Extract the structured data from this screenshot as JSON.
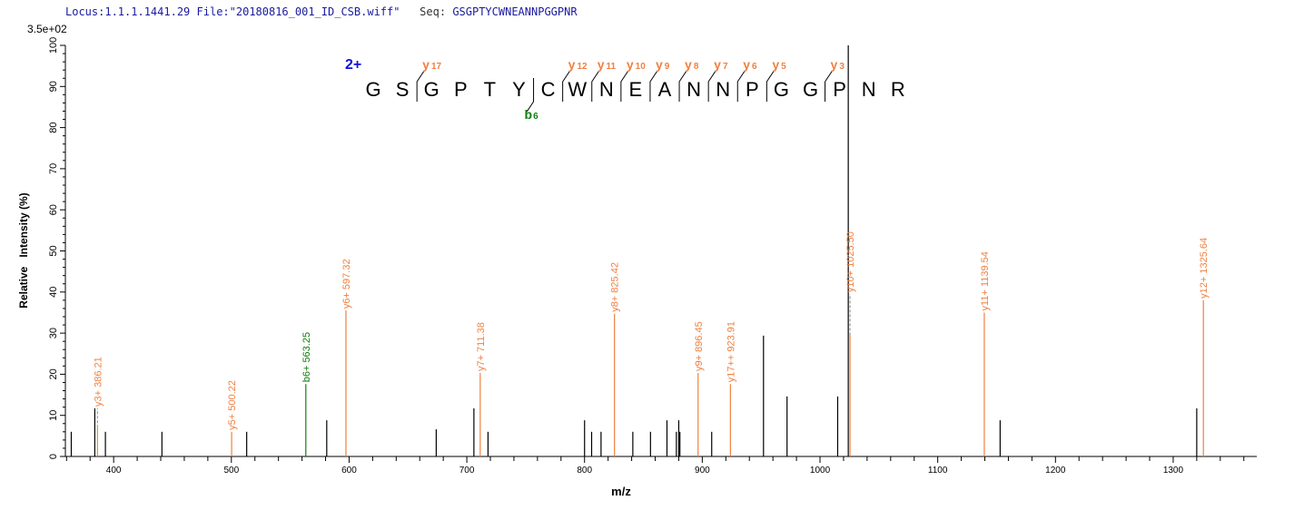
{
  "header": {
    "locus_label": "Locus:1.1.1.1441.29",
    "file_label": "File:\"20180816_001_ID_CSB.wiff\"",
    "seq_key": "Seq:",
    "seq_value": "GSGPTYCWNEANNPGGPNR"
  },
  "chart_data": {
    "type": "bar",
    "subtype": "mass-spectrum-sticks",
    "xlabel": "m/z",
    "ylabel": "Relative   Intensity (%)",
    "y_scale_max_label": "3.5e+02",
    "xlim": [
      359,
      1371
    ],
    "ylim": [
      0,
      100
    ],
    "x_ticks": [
      400,
      500,
      600,
      700,
      800,
      900,
      1000,
      1100,
      1200,
      1300
    ],
    "y_ticks": [
      0,
      10,
      20,
      30,
      40,
      50,
      60,
      70,
      80,
      90,
      100
    ],
    "grid": false,
    "colors": {
      "unmatched": "#000000",
      "y_ion": "#f08040",
      "b_ion": "#108010",
      "charge": "#1010e0"
    },
    "unmatched_peaks": [
      {
        "mz": 364,
        "intensity": 6
      },
      {
        "mz": 384,
        "intensity": 11.7
      },
      {
        "mz": 393,
        "intensity": 6
      },
      {
        "mz": 441,
        "intensity": 6
      },
      {
        "mz": 513,
        "intensity": 6
      },
      {
        "mz": 581,
        "intensity": 8.8
      },
      {
        "mz": 674,
        "intensity": 6.6
      },
      {
        "mz": 706,
        "intensity": 11.7
      },
      {
        "mz": 718,
        "intensity": 6
      },
      {
        "mz": 800,
        "intensity": 8.8
      },
      {
        "mz": 806,
        "intensity": 6
      },
      {
        "mz": 814,
        "intensity": 6
      },
      {
        "mz": 841,
        "intensity": 6
      },
      {
        "mz": 856,
        "intensity": 6
      },
      {
        "mz": 870,
        "intensity": 8.8
      },
      {
        "mz": 878,
        "intensity": 6
      },
      {
        "mz": 880,
        "intensity": 8.8
      },
      {
        "mz": 881,
        "intensity": 6
      },
      {
        "mz": 908,
        "intensity": 6
      },
      {
        "mz": 952,
        "intensity": 29.4
      },
      {
        "mz": 972,
        "intensity": 14.6
      },
      {
        "mz": 1015,
        "intensity": 14.6
      },
      {
        "mz": 1024,
        "intensity": 100
      },
      {
        "mz": 1153,
        "intensity": 8.8
      },
      {
        "mz": 1320,
        "intensity": 11.7
      }
    ],
    "annotated_peaks": [
      {
        "label": "y3+ 386.21",
        "mz": 386.21,
        "intensity": 7,
        "ion": "y"
      },
      {
        "label": "y5+ 500.22",
        "mz": 500.22,
        "intensity": 6,
        "ion": "y"
      },
      {
        "label": "b6+ 563.25",
        "mz": 563.25,
        "intensity": 17.6,
        "ion": "b"
      },
      {
        "label": "y6+ 597.32",
        "mz": 597.32,
        "intensity": 35.5,
        "ion": "y"
      },
      {
        "label": "y7+ 711.38",
        "mz": 711.38,
        "intensity": 20.3,
        "ion": "y"
      },
      {
        "label": "y8+ 825.42",
        "mz": 825.42,
        "intensity": 34.7,
        "ion": "y"
      },
      {
        "label": "y9+ 896.45",
        "mz": 896.45,
        "intensity": 20.3,
        "ion": "y"
      },
      {
        "label": "y17++ 923.91",
        "mz": 923.91,
        "intensity": 17.6,
        "ion": "y"
      },
      {
        "label": "y10+ 1025.50",
        "mz": 1025.5,
        "intensity": 29.5,
        "ion": "y"
      },
      {
        "label": "y11+ 1139.54",
        "mz": 1139.54,
        "intensity": 35,
        "ion": "y"
      },
      {
        "label": "y12+ 1325.64",
        "mz": 1325.64,
        "intensity": 38,
        "ion": "y"
      }
    ],
    "peptide": {
      "charge": "2+",
      "sequence": [
        "G",
        "S",
        "G",
        "P",
        "T",
        "Y",
        "C",
        "W",
        "N",
        "E",
        "A",
        "N",
        "N",
        "P",
        "G",
        "G",
        "P",
        "N",
        "R"
      ],
      "y_breaks": [
        {
          "after": 2,
          "ion": "y",
          "n": "17"
        },
        {
          "after": 7,
          "ion": "y",
          "n": "12"
        },
        {
          "after": 8,
          "ion": "y",
          "n": "11"
        },
        {
          "after": 9,
          "ion": "y",
          "n": "10"
        },
        {
          "after": 10,
          "ion": "y",
          "n": "9"
        },
        {
          "after": 11,
          "ion": "y",
          "n": "8"
        },
        {
          "after": 12,
          "ion": "y",
          "n": "7"
        },
        {
          "after": 13,
          "ion": "y",
          "n": "6"
        },
        {
          "after": 14,
          "ion": "y",
          "n": "5"
        },
        {
          "after": 16,
          "ion": "y",
          "n": "3"
        }
      ],
      "b_breaks": [
        {
          "after": 6,
          "ion": "b",
          "n": "6"
        }
      ]
    }
  }
}
